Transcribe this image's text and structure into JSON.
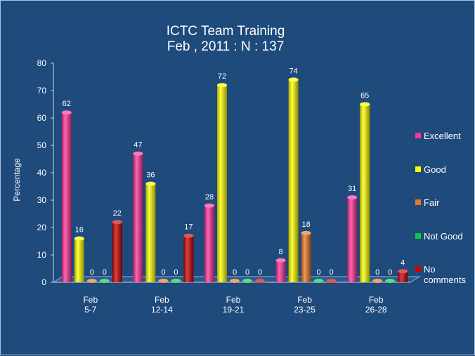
{
  "chart_data": {
    "type": "bar",
    "title": "ICTC Team Training",
    "subtitle": "Feb , 2011 : N : 137",
    "xlabel": "",
    "ylabel": "Percentage",
    "ylim": [
      0,
      80
    ],
    "yticks": [
      0,
      10,
      20,
      30,
      40,
      50,
      60,
      70,
      80
    ],
    "legend_position": "right",
    "grid": false,
    "categories": [
      {
        "line1": "Feb",
        "line2": "5-7"
      },
      {
        "line1": "Feb",
        "line2": "12-14"
      },
      {
        "line1": "Feb",
        "line2": "19-21"
      },
      {
        "line1": "Feb",
        "line2": "23-25"
      },
      {
        "line1": "Feb",
        "line2": "26-28"
      }
    ],
    "series": [
      {
        "name": "Excellent",
        "color": "#ff3399",
        "values": [
          62,
          47,
          28,
          8,
          31
        ]
      },
      {
        "name": "Good",
        "color": "#ffff00",
        "values": [
          16,
          36,
          72,
          74,
          65
        ]
      },
      {
        "name": "Fair",
        "color": "#e87722",
        "values": [
          0,
          0,
          0,
          18,
          0
        ]
      },
      {
        "name": "Not Good",
        "color": "#00cc44",
        "values": [
          0,
          0,
          0,
          0,
          0
        ]
      },
      {
        "name": "No comments",
        "color": "#cc0000",
        "values": [
          22,
          17,
          0,
          0,
          4
        ]
      }
    ],
    "legend_labels": [
      [
        "Excellent"
      ],
      [
        "Good"
      ],
      [
        "Fair"
      ],
      [
        "Not Good"
      ],
      [
        "No",
        "comments"
      ]
    ]
  }
}
